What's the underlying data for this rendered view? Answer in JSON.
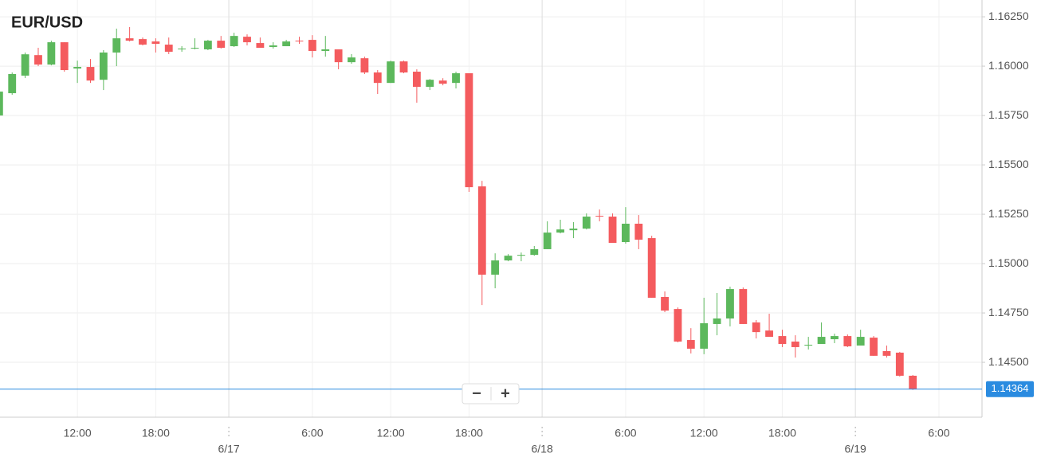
{
  "chart_data": {
    "type": "candlestick",
    "title": "EUR/USD",
    "up_color": "#5cb85c",
    "down_color": "#f45b5e",
    "open": [
      1.1575,
      1.15863,
      1.15952,
      1.16056,
      1.16008,
      1.16121,
      1.15988,
      1.15996,
      1.15931,
      1.16069,
      1.16141,
      1.16137,
      1.16125,
      1.16109,
      1.16085,
      1.16089,
      1.16085,
      1.16129,
      1.16101,
      1.16149,
      1.16117,
      1.16097,
      1.16101,
      1.16129,
      1.16133,
      1.16077,
      1.16085,
      1.1602,
      1.1604,
      1.15968,
      1.15915,
      1.16024,
      1.15972,
      1.15895,
      1.15927,
      1.15915,
      1.15964,
      1.15391,
      1.14944,
      1.15016,
      1.1504,
      1.15044,
      1.15073,
      1.15157,
      1.15169,
      1.15177,
      1.15242,
      1.15238,
      1.15109,
      1.15202,
      1.15129,
      1.14831,
      1.1477,
      1.14613,
      1.14569,
      1.14694,
      1.14722,
      1.14871,
      1.14702,
      1.14661,
      1.14633,
      1.14605,
      1.14585,
      1.14593,
      1.14617,
      1.14633,
      1.14585,
      1.14625,
      1.14557,
      1.14549,
      1.14432
    ],
    "high": [
      1.15871,
      1.15968,
      1.16069,
      1.16093,
      1.16129,
      1.16121,
      1.16028,
      1.16036,
      1.16081,
      1.1619,
      1.16198,
      1.16145,
      1.16141,
      1.16145,
      1.16101,
      1.16141,
      1.16133,
      1.16153,
      1.16169,
      1.16161,
      1.16145,
      1.16121,
      1.16133,
      1.16149,
      1.16157,
      1.16153,
      1.16085,
      1.16061,
      1.16048,
      1.1598,
      1.16028,
      1.16028,
      1.15984,
      1.15935,
      1.15939,
      1.15972,
      1.15964,
      1.15419,
      1.15052,
      1.15048,
      1.15056,
      1.15089,
      1.15214,
      1.15222,
      1.1521,
      1.15254,
      1.15274,
      1.15254,
      1.15286,
      1.15246,
      1.15141,
      1.14859,
      1.14778,
      1.14673,
      1.14827,
      1.14851,
      1.14883,
      1.14879,
      1.14714,
      1.14746,
      1.14665,
      1.14637,
      1.14629,
      1.14702,
      1.14645,
      1.14641,
      1.14665,
      1.14633,
      1.14585,
      1.14553,
      1.14436
    ],
    "low": [
      1.1575,
      1.15855,
      1.1594,
      1.16,
      1.16004,
      1.15972,
      1.15915,
      1.15915,
      1.15879,
      1.16,
      1.16125,
      1.16105,
      1.16069,
      1.16061,
      1.16073,
      1.16085,
      1.16081,
      1.16089,
      1.16097,
      1.16105,
      1.16093,
      1.16089,
      1.16101,
      1.16113,
      1.16044,
      1.16048,
      1.15984,
      1.16012,
      1.1596,
      1.15859,
      1.15915,
      1.15964,
      1.15815,
      1.15879,
      1.15903,
      1.15887,
      1.15363,
      1.1479,
      1.14875,
      1.15012,
      1.15012,
      1.1504,
      1.15073,
      1.15153,
      1.15129,
      1.15173,
      1.15214,
      1.15105,
      1.15101,
      1.15073,
      1.14827,
      1.14754,
      1.14601,
      1.14545,
      1.14541,
      1.14637,
      1.14682,
      1.14694,
      1.14621,
      1.14629,
      1.14577,
      1.14524,
      1.14565,
      1.14593,
      1.14597,
      1.14577,
      1.14585,
      1.14533,
      1.14524,
      1.14428,
      1.1436
    ],
    "close": [
      1.15871,
      1.1596,
      1.1606,
      1.16008,
      1.16121,
      1.1598,
      1.15996,
      1.15927,
      1.16069,
      1.16141,
      1.16129,
      1.16109,
      1.16113,
      1.16073,
      1.16089,
      1.16093,
      1.16129,
      1.16093,
      1.16153,
      1.16121,
      1.16093,
      1.16105,
      1.16125,
      1.16125,
      1.16077,
      1.16085,
      1.1602,
      1.16044,
      1.15968,
      1.15915,
      1.16024,
      1.15968,
      1.15895,
      1.15931,
      1.15911,
      1.15964,
      1.15387,
      1.14944,
      1.15016,
      1.1504,
      1.15044,
      1.15073,
      1.15157,
      1.15173,
      1.15177,
      1.15238,
      1.15238,
      1.15105,
      1.15202,
      1.15121,
      1.14827,
      1.14762,
      1.14605,
      1.14569,
      1.14698,
      1.14722,
      1.14871,
      1.14694,
      1.14653,
      1.14629,
      1.14593,
      1.14577,
      1.14589,
      1.14629,
      1.14633,
      1.14581,
      1.14629,
      1.14533,
      1.14533,
      1.14432,
      1.14364
    ],
    "xlim": [
      0.07,
      75.3
    ],
    "xticks": [
      {
        "value": 6,
        "label": "12:00"
      },
      {
        "value": 12,
        "label": "18:00"
      },
      {
        "value": 24,
        "label": "6:00"
      },
      {
        "value": 30,
        "label": "12:00"
      },
      {
        "value": 36,
        "label": "18:00"
      },
      {
        "value": 48,
        "label": "6:00"
      },
      {
        "value": 54,
        "label": "12:00"
      },
      {
        "value": 60,
        "label": "18:00"
      },
      {
        "value": 72,
        "label": "6:00"
      }
    ],
    "date_ticks": [
      {
        "value": 17.6,
        "label": "6/17"
      },
      {
        "value": 41.6,
        "label": "6/18"
      },
      {
        "value": 65.6,
        "label": "6/19"
      }
    ],
    "ylim": [
      1.14222,
      1.16335
    ],
    "yticks": [
      {
        "value": 1.1625,
        "label": "1.16250"
      },
      {
        "value": 1.16,
        "label": "1.16000"
      },
      {
        "value": 1.1575,
        "label": "1.15750"
      },
      {
        "value": 1.155,
        "label": "1.15500"
      },
      {
        "value": 1.1525,
        "label": "1.15250"
      },
      {
        "value": 1.15,
        "label": "1.15000"
      },
      {
        "value": 1.1475,
        "label": "1.14750"
      },
      {
        "value": 1.145,
        "label": "1.14500"
      }
    ],
    "grid": true,
    "last_price": 1.14364,
    "last_price_color": "#2a8be0",
    "zoom_controls": [
      "−",
      "+"
    ]
  }
}
